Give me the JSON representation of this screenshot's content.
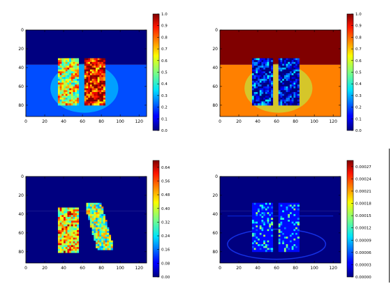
{
  "chart_data": [
    {
      "type": "heatmap",
      "colormap": "jet",
      "description": "panel top-left",
      "x_ticks": [
        "0",
        "20",
        "40",
        "60",
        "80",
        "100",
        "120"
      ],
      "y_ticks": [
        "0",
        "20",
        "40",
        "60",
        "80"
      ],
      "xlim": [
        0,
        128
      ],
      "ylim": [
        92,
        0
      ],
      "colorbar_ticks": [
        "0.0",
        "0.1",
        "0.2",
        "0.3",
        "0.4",
        "0.5",
        "0.6",
        "0.7",
        "0.8",
        "0.9",
        "1.0"
      ],
      "colorbar_range": [
        0.0,
        1.0
      ],
      "background_top": 0.0,
      "background_bottom": 0.2,
      "regions": [
        {
          "shape": "block",
          "x": [
            34,
            56
          ],
          "y": [
            30,
            80
          ],
          "level": 0.6
        },
        {
          "shape": "block",
          "x": [
            62,
            84
          ],
          "y": [
            30,
            80
          ],
          "level": 0.9
        }
      ]
    },
    {
      "type": "heatmap",
      "colormap": "jet",
      "description": "panel top-right",
      "x_ticks": [
        "0",
        "20",
        "40",
        "60",
        "80",
        "100",
        "120"
      ],
      "y_ticks": [
        "0",
        "20",
        "40",
        "60",
        "80"
      ],
      "xlim": [
        0,
        128
      ],
      "ylim": [
        92,
        0
      ],
      "colorbar_ticks": [
        "0.0",
        "0.1",
        "0.2",
        "0.3",
        "0.4",
        "0.5",
        "0.6",
        "0.7",
        "0.8",
        "0.9",
        "1.0"
      ],
      "colorbar_range": [
        0.0,
        1.0
      ],
      "background_top": 1.0,
      "background_bottom": 0.75,
      "regions": [
        {
          "shape": "block",
          "x": [
            34,
            56
          ],
          "y": [
            30,
            80
          ],
          "level": 0.1
        },
        {
          "shape": "block",
          "x": [
            62,
            84
          ],
          "y": [
            30,
            80
          ],
          "level": 0.05
        }
      ]
    },
    {
      "type": "heatmap",
      "colormap": "jet",
      "description": "panel bottom-left",
      "x_ticks": [
        "0",
        "20",
        "40",
        "60",
        "80",
        "100",
        "120"
      ],
      "y_ticks": [
        "0",
        "20",
        "40",
        "60",
        "80"
      ],
      "xlim": [
        0,
        128
      ],
      "ylim": [
        92,
        0
      ],
      "colorbar_ticks": [
        "0.00",
        "0.08",
        "0.16",
        "0.24",
        "0.32",
        "0.40",
        "0.48",
        "0.56",
        "0.64"
      ],
      "colorbar_range": [
        0.0,
        0.68
      ],
      "background_top": 0.0,
      "background_bottom": 0.0,
      "regions": [
        {
          "shape": "block",
          "x": [
            34,
            56
          ],
          "y": [
            33,
            80
          ],
          "level": 0.45
        },
        {
          "shape": "streak",
          "x": [
            64,
            92
          ],
          "y": [
            28,
            78
          ],
          "level": 0.35
        }
      ]
    },
    {
      "type": "heatmap",
      "colormap": "jet",
      "description": "panel bottom-right",
      "x_ticks": [
        "0",
        "20",
        "40",
        "60",
        "80",
        "100",
        "120"
      ],
      "y_ticks": [
        "0",
        "20",
        "40",
        "60",
        "80"
      ],
      "xlim": [
        0,
        128
      ],
      "ylim": [
        92,
        0
      ],
      "colorbar_ticks": [
        "0.00000",
        "0.00003",
        "0.00006",
        "0.00009",
        "0.00012",
        "0.00015",
        "0.00018",
        "0.00021",
        "0.00024",
        "0.00027"
      ],
      "colorbar_range": [
        0.0,
        0.000285
      ],
      "background_top": 0.0,
      "background_bottom": 0.0,
      "regions": [
        {
          "shape": "speckle",
          "x": [
            34,
            56
          ],
          "y": [
            28,
            80
          ],
          "level": 6e-05
        },
        {
          "shape": "speckle",
          "x": [
            62,
            84
          ],
          "y": [
            28,
            80
          ],
          "level": 6e-05
        }
      ]
    }
  ]
}
